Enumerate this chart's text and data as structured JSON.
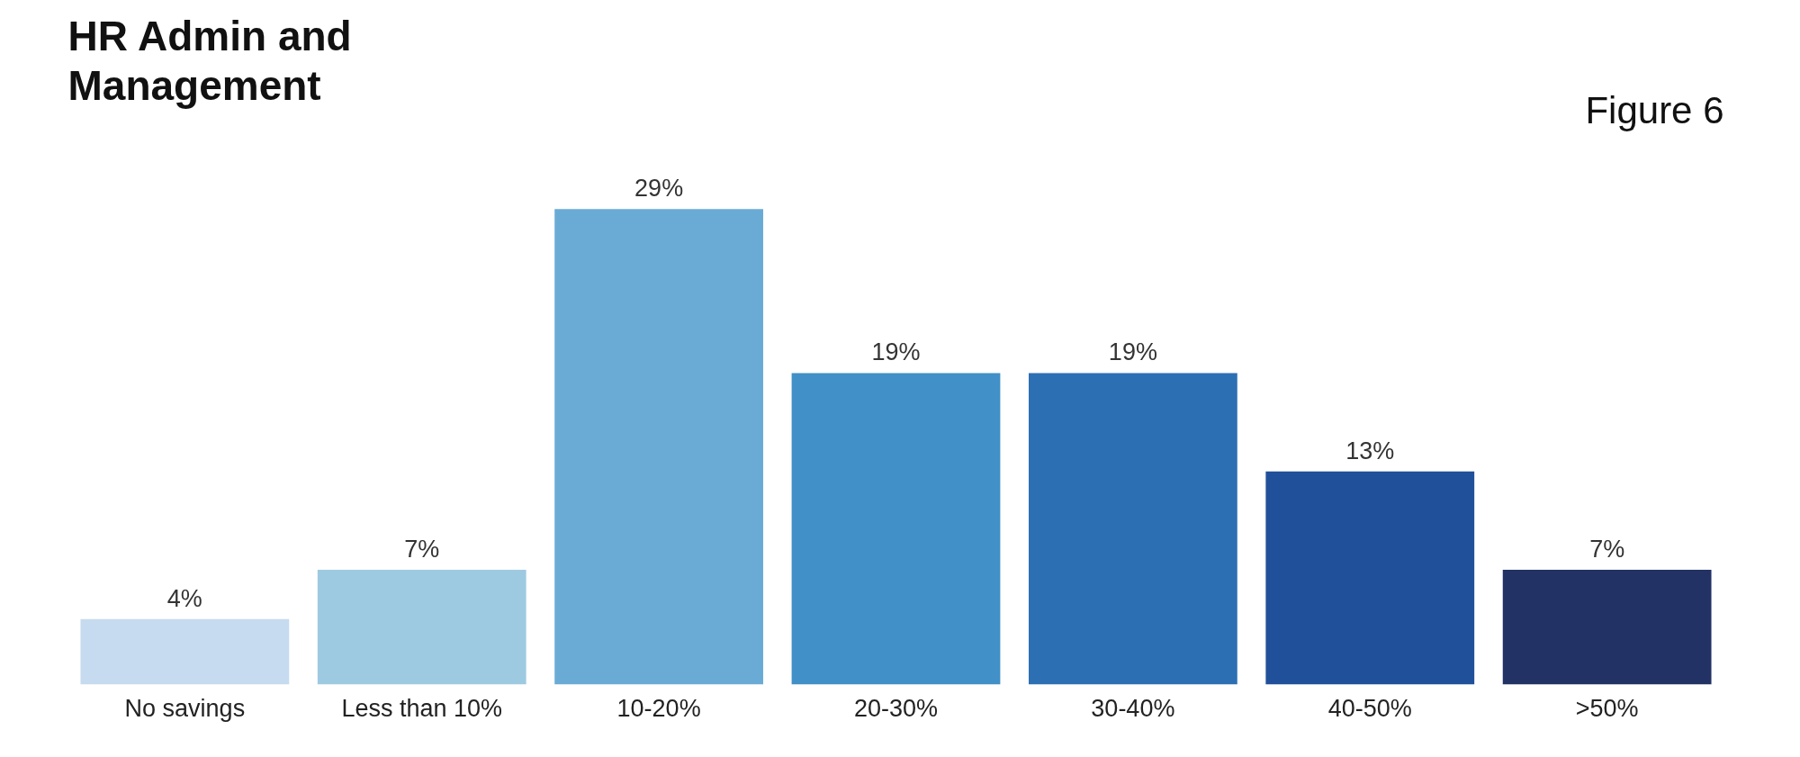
{
  "chart_data": {
    "type": "bar",
    "title": "HR Admin and Management",
    "categories": [
      "No savings",
      "Less than 10%",
      "10-20%",
      "20-30%",
      "30-40%",
      "40-50%",
      ">50%"
    ],
    "values": [
      4,
      7,
      29,
      19,
      19,
      13,
      7
    ],
    "value_labels": [
      "4%",
      "7%",
      "29%",
      "19%",
      "19%",
      "13%",
      "7%"
    ],
    "colors": [
      "#c6dbef",
      "#9ecae1",
      "#6aabd6",
      "#4190c7",
      "#2d6fb3",
      "#21509a",
      "#223264"
    ],
    "annotations": [
      "Figure 6"
    ],
    "grid": false
  }
}
